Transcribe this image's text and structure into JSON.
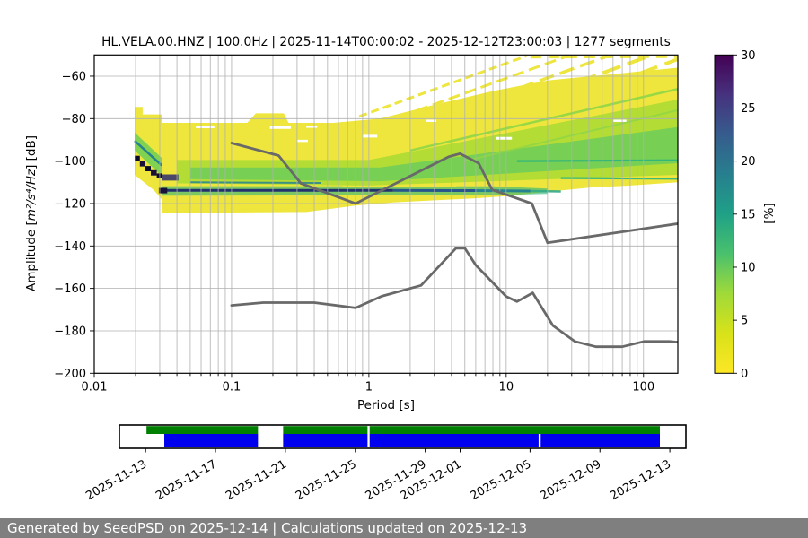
{
  "title": "HL.VELA.00.HNZ | 100.0Hz | 2025-11-14T00:00:02 - 2025-12-12T23:00:03 | 1277 segments",
  "footer": {
    "text": "Generated by SeedPSD on 2025-12-14 | Calculations updated on 2025-12-13",
    "bg": "#7f7f7f"
  },
  "chart_data": {
    "type": "heatmap",
    "title": "HL.VELA.00.HNZ | 100.0Hz | 2025-11-14T00:00:02 - 2025-12-12T23:00:03 | 1277 segments",
    "xlabel": "Period [s]",
    "ylabel": "Amplitude [m²/s⁴/Hz] [dB]",
    "ylabel_parts": {
      "prefix": "Amplitude [",
      "math": "m²/s⁴/Hz",
      "suffix": "] [dB]"
    },
    "xscale": "log",
    "xlim": [
      0.01,
      177.8
    ],
    "ylim": [
      -200,
      -50
    ],
    "xticks": [
      0.01,
      0.1,
      1,
      10,
      100
    ],
    "xtick_labels": [
      "0.01",
      "0.1",
      "1",
      "10",
      "100"
    ],
    "yticks": [
      -60,
      -80,
      -100,
      -120,
      -140,
      -160,
      -180,
      -200
    ],
    "grid_color": "#b0b0b0",
    "colorbar": {
      "label": "[%]",
      "lim": [
        0,
        30
      ],
      "ticks": [
        0,
        5,
        10,
        15,
        20,
        25,
        30
      ],
      "stops_top_to_bottom": [
        "#440154",
        "#46327e",
        "#365c8d",
        "#277f8e",
        "#1fa187",
        "#4ac16d",
        "#a0da39",
        "#d8e219",
        "#fde725"
      ]
    },
    "noise_models": {
      "color": "#696969",
      "nhnm": [
        [
          0.1,
          -91.5
        ],
        [
          0.22,
          -97.4
        ],
        [
          0.32,
          -110.5
        ],
        [
          0.8,
          -120
        ],
        [
          3.8,
          -98
        ],
        [
          4.6,
          -96.5
        ],
        [
          6.3,
          -101
        ],
        [
          7.9,
          -113.5
        ],
        [
          15.4,
          -120
        ],
        [
          20,
          -138.5
        ],
        [
          177.8,
          -129.5
        ]
      ],
      "nlnm": [
        [
          0.1,
          -168
        ],
        [
          0.17,
          -166.7
        ],
        [
          0.4,
          -166.7
        ],
        [
          0.8,
          -169.2
        ],
        [
          1.24,
          -163.7
        ],
        [
          2.4,
          -158.6
        ],
        [
          4.3,
          -141.1
        ],
        [
          5,
          -141.1
        ],
        [
          6,
          -149
        ],
        [
          10,
          -163.8
        ],
        [
          12,
          -166.2
        ],
        [
          15.6,
          -162.1
        ],
        [
          21.9,
          -177.5
        ],
        [
          31.6,
          -185
        ],
        [
          45,
          -187.5
        ],
        [
          70,
          -187.5
        ],
        [
          101,
          -185
        ],
        [
          154,
          -185
        ],
        [
          177.8,
          -185.4
        ]
      ]
    },
    "histogram_layers": [
      {
        "name": "left-column",
        "type": "polygon",
        "fill": "#eee63c",
        "points": [
          [
            0.0197,
            -74.5
          ],
          [
            0.0225,
            -74.5
          ],
          [
            0.0225,
            -78
          ],
          [
            0.031,
            -78
          ],
          [
            0.031,
            -118
          ],
          [
            0.027,
            -113.5
          ],
          [
            0.023,
            -110
          ],
          [
            0.0197,
            -106.5
          ]
        ]
      },
      {
        "name": "left-column-green-band",
        "type": "polygon",
        "fill": "#7ad151",
        "opacity": 0.95,
        "points": [
          [
            0.0197,
            -86.5
          ],
          [
            0.031,
            -98.5
          ],
          [
            0.031,
            -107
          ],
          [
            0.0197,
            -95
          ]
        ]
      },
      {
        "name": "left-column-teal-line",
        "type": "polyline",
        "stroke": "#26828e",
        "width": 2.5,
        "points": [
          [
            0.0197,
            -90.5
          ],
          [
            0.031,
            -102
          ]
        ]
      },
      {
        "name": "main-blob",
        "type": "polygon",
        "fill": "#eee63c",
        "points": [
          [
            0.031,
            -82
          ],
          [
            0.13,
            -82
          ],
          [
            0.15,
            -77.5
          ],
          [
            0.24,
            -77.5
          ],
          [
            0.26,
            -82
          ],
          [
            0.55,
            -82
          ],
          [
            1.2,
            -80
          ],
          [
            3,
            -73.5
          ],
          [
            8,
            -67
          ],
          [
            20,
            -62
          ],
          [
            60,
            -59
          ],
          [
            177.8,
            -56
          ],
          [
            177.8,
            -110
          ],
          [
            80,
            -111.5
          ],
          [
            40,
            -112.5
          ],
          [
            20,
            -114.5
          ],
          [
            10,
            -116.5
          ],
          [
            6,
            -117.5
          ],
          [
            3,
            -118.5
          ],
          [
            1.5,
            -119.5
          ],
          [
            0.8,
            -121
          ],
          [
            0.35,
            -124
          ],
          [
            0.031,
            -124.5
          ]
        ]
      },
      {
        "name": "streak-1",
        "type": "polyline",
        "stroke": "#eee63c",
        "width": 3,
        "dash": "9 5",
        "points": [
          [
            0.85,
            -79
          ],
          [
            14,
            -50.5
          ]
        ]
      },
      {
        "name": "streak-2",
        "type": "polyline",
        "stroke": "#eee63c",
        "width": 3,
        "dash": "13 6",
        "points": [
          [
            1.7,
            -79
          ],
          [
            28,
            -50.5
          ]
        ]
      },
      {
        "name": "streak-3",
        "type": "polyline",
        "stroke": "#eee63c",
        "width": 3.5,
        "dash": "17 7",
        "points": [
          [
            3.2,
            -79.5
          ],
          [
            55,
            -50.5
          ]
        ]
      },
      {
        "name": "streak-4",
        "type": "polyline",
        "stroke": "#eee63c",
        "width": 4,
        "dash": "21 8",
        "points": [
          [
            6.5,
            -79.5
          ],
          [
            110,
            -50.5
          ]
        ]
      },
      {
        "name": "streak-5",
        "type": "polyline",
        "stroke": "#eee63c",
        "width": 4,
        "dash": "25 9",
        "points": [
          [
            13,
            -79.5
          ],
          [
            177.8,
            -52
          ]
        ]
      },
      {
        "name": "streak-top-row",
        "type": "polyline",
        "stroke": "#eee63c",
        "width": 3,
        "dash": "12 8",
        "points": [
          [
            15,
            -51
          ],
          [
            177.8,
            -50.8
          ]
        ]
      },
      {
        "name": "green-band-wide",
        "type": "polygon",
        "fill": "#a8db34",
        "opacity": 0.85,
        "points": [
          [
            0.04,
            -99.5
          ],
          [
            1,
            -99.5
          ],
          [
            177.8,
            -71
          ],
          [
            177.8,
            -106.5
          ],
          [
            1,
            -111.5
          ],
          [
            0.04,
            -110.5
          ]
        ]
      },
      {
        "name": "green-band-core",
        "type": "polygon",
        "fill": "#5ec962",
        "opacity": 0.7,
        "points": [
          [
            0.05,
            -103
          ],
          [
            1.2,
            -103
          ],
          [
            177.8,
            -84
          ],
          [
            177.8,
            -101
          ],
          [
            1.2,
            -109.5
          ],
          [
            0.05,
            -108.5
          ]
        ]
      },
      {
        "name": "green-diagonal-streak-1",
        "type": "polyline",
        "stroke": "#8ed645",
        "width": 2.5,
        "opacity": 0.9,
        "points": [
          [
            2,
            -95
          ],
          [
            177.8,
            -66
          ]
        ]
      },
      {
        "name": "green-diagonal-streak-2",
        "type": "polyline",
        "stroke": "#8ed645",
        "width": 2,
        "opacity": 0.8,
        "points": [
          [
            5,
            -100
          ],
          [
            177.8,
            -76
          ]
        ]
      },
      {
        "name": "teal-line-right-upper",
        "type": "polyline",
        "stroke": "#2fb47c",
        "width": 2.2,
        "opacity": 0.95,
        "points": [
          [
            12,
            -100
          ],
          [
            177.8,
            -99.6
          ]
        ]
      },
      {
        "name": "teal-line-right-lower",
        "type": "polyline",
        "stroke": "#2fb47c",
        "width": 2.2,
        "opacity": 0.95,
        "points": [
          [
            25,
            -108
          ],
          [
            177.8,
            -108.3
          ]
        ]
      },
      {
        "name": "teal-line-left-short",
        "type": "polyline",
        "stroke": "#26828e",
        "width": 2,
        "opacity": 0.85,
        "points": [
          [
            0.05,
            -110
          ],
          [
            0.45,
            -110.3
          ]
        ]
      },
      {
        "name": "navy-halo",
        "type": "polygon",
        "fill": "#2fb47c",
        "opacity": 0.6,
        "points": [
          [
            0.031,
            -111.8
          ],
          [
            8,
            -111.9
          ],
          [
            20,
            -112.9
          ],
          [
            20,
            -115.5
          ],
          [
            8,
            -116.1
          ],
          [
            0.031,
            -116.3
          ]
        ]
      },
      {
        "name": "navy-core-1",
        "type": "polyline",
        "stroke": "#23306e",
        "width": 3,
        "points": [
          [
            0.031,
            -113.8
          ],
          [
            1.5,
            -113.8
          ]
        ]
      },
      {
        "name": "navy-core-2",
        "type": "polyline",
        "stroke": "#26548c",
        "width": 3,
        "points": [
          [
            1.5,
            -113.8
          ],
          [
            6,
            -113.9
          ]
        ]
      },
      {
        "name": "navy-core-3",
        "type": "polyline",
        "stroke": "#26828e",
        "width": 3,
        "points": [
          [
            6,
            -113.9
          ],
          [
            15,
            -114.1
          ]
        ]
      },
      {
        "name": "navy-core-4",
        "type": "polyline",
        "stroke": "#31a88a",
        "width": 2.5,
        "opacity": 0.9,
        "points": [
          [
            15,
            -114.1
          ],
          [
            25,
            -114.3
          ]
        ]
      },
      {
        "name": "dark-cell-1",
        "type": "polygon",
        "fill": "#0b0c2a",
        "points": [
          [
            0.0197,
            -97.5
          ],
          [
            0.0215,
            -97.5
          ],
          [
            0.0215,
            -100
          ],
          [
            0.0197,
            -100
          ]
        ]
      },
      {
        "name": "dark-cell-2",
        "type": "polygon",
        "fill": "#1a1138",
        "points": [
          [
            0.0215,
            -100
          ],
          [
            0.0235,
            -100
          ],
          [
            0.0235,
            -102.5
          ],
          [
            0.0215,
            -102.5
          ]
        ]
      },
      {
        "name": "dark-cell-3",
        "type": "polygon",
        "fill": "#0b0c2a",
        "points": [
          [
            0.0235,
            -102.3
          ],
          [
            0.0258,
            -102.3
          ],
          [
            0.0258,
            -104.8
          ],
          [
            0.0235,
            -104.8
          ]
        ]
      },
      {
        "name": "dark-cell-4",
        "type": "polygon",
        "fill": "#1a1138",
        "points": [
          [
            0.0258,
            -104.3
          ],
          [
            0.0285,
            -104.3
          ],
          [
            0.0285,
            -106.8
          ],
          [
            0.0258,
            -106.8
          ]
        ]
      },
      {
        "name": "dark-cell-5",
        "type": "polygon",
        "fill": "#0b0c2a",
        "points": [
          [
            0.0285,
            -105.8
          ],
          [
            0.031,
            -105.8
          ],
          [
            0.031,
            -108.2
          ],
          [
            0.0285,
            -108.2
          ]
        ]
      },
      {
        "name": "dark-cell-6",
        "type": "polygon",
        "fill": "#1a1138",
        "points": [
          [
            0.0295,
            -112.6
          ],
          [
            0.034,
            -112.6
          ],
          [
            0.034,
            -115.2
          ],
          [
            0.0295,
            -115.2
          ]
        ]
      },
      {
        "name": "dark-patch",
        "type": "polygon",
        "fill": "#2c2d6e",
        "opacity": 0.85,
        "points": [
          [
            0.031,
            -106.3
          ],
          [
            0.041,
            -106.3
          ],
          [
            0.041,
            -109.2
          ],
          [
            0.031,
            -109.2
          ]
        ]
      },
      {
        "name": "white-dash-1",
        "type": "polyline",
        "stroke": "#ffffff",
        "width": 3,
        "points": [
          [
            0.19,
            -84.2
          ],
          [
            0.27,
            -84.2
          ]
        ]
      },
      {
        "name": "white-dash-2",
        "type": "polyline",
        "stroke": "#ffffff",
        "width": 2.5,
        "points": [
          [
            0.055,
            -84
          ],
          [
            0.075,
            -84
          ]
        ]
      },
      {
        "name": "white-dash-3",
        "type": "polyline",
        "stroke": "#ffffff",
        "width": 2.5,
        "points": [
          [
            0.35,
            -83.8
          ],
          [
            0.42,
            -83.8
          ]
        ]
      },
      {
        "name": "white-dash-4",
        "type": "polyline",
        "stroke": "#ffffff",
        "width": 3,
        "points": [
          [
            0.9,
            -88.3
          ],
          [
            1.15,
            -88.3
          ]
        ]
      },
      {
        "name": "white-dash-5",
        "type": "polyline",
        "stroke": "#ffffff",
        "width": 3,
        "points": [
          [
            8.5,
            -89.3
          ],
          [
            11,
            -89.3
          ]
        ]
      },
      {
        "name": "white-dash-6",
        "type": "polyline",
        "stroke": "#ffffff",
        "width": 2.5,
        "points": [
          [
            0.3,
            -90.5
          ],
          [
            0.36,
            -90.5
          ]
        ]
      },
      {
        "name": "white-dash-7",
        "type": "polyline",
        "stroke": "#ffffff",
        "width": 2.5,
        "points": [
          [
            60,
            -81
          ],
          [
            75,
            -81
          ]
        ]
      },
      {
        "name": "white-dash-8",
        "type": "polyline",
        "stroke": "#ffffff",
        "width": 2.5,
        "points": [
          [
            2.6,
            -81
          ],
          [
            3.1,
            -81
          ]
        ]
      }
    ]
  },
  "timeline": {
    "axis_days": [
      -1.5,
      30.92
    ],
    "day_zero_label": "2025-11-13",
    "ticks": [
      {
        "label": "2025-11-13",
        "day": 0
      },
      {
        "label": "2025-11-17",
        "day": 4
      },
      {
        "label": "2025-11-21",
        "day": 8
      },
      {
        "label": "2025-11-25",
        "day": 12
      },
      {
        "label": "2025-11-29",
        "day": 16
      },
      {
        "label": "2025-12-01",
        "day": 18
      },
      {
        "label": "2025-12-05",
        "day": 22
      },
      {
        "label": "2025-12-09",
        "day": 26
      },
      {
        "label": "2025-12-13",
        "day": 30
      }
    ],
    "green_color": "#008000",
    "blue_color": "#0000ee",
    "green_segments": [
      [
        0.05,
        6.43
      ],
      [
        7.87,
        12.7
      ],
      [
        12.82,
        29.43
      ]
    ],
    "blue_segments": [
      [
        1.07,
        6.43
      ],
      [
        7.87,
        12.7
      ],
      [
        12.82,
        22.49
      ],
      [
        22.61,
        29.43
      ]
    ]
  }
}
